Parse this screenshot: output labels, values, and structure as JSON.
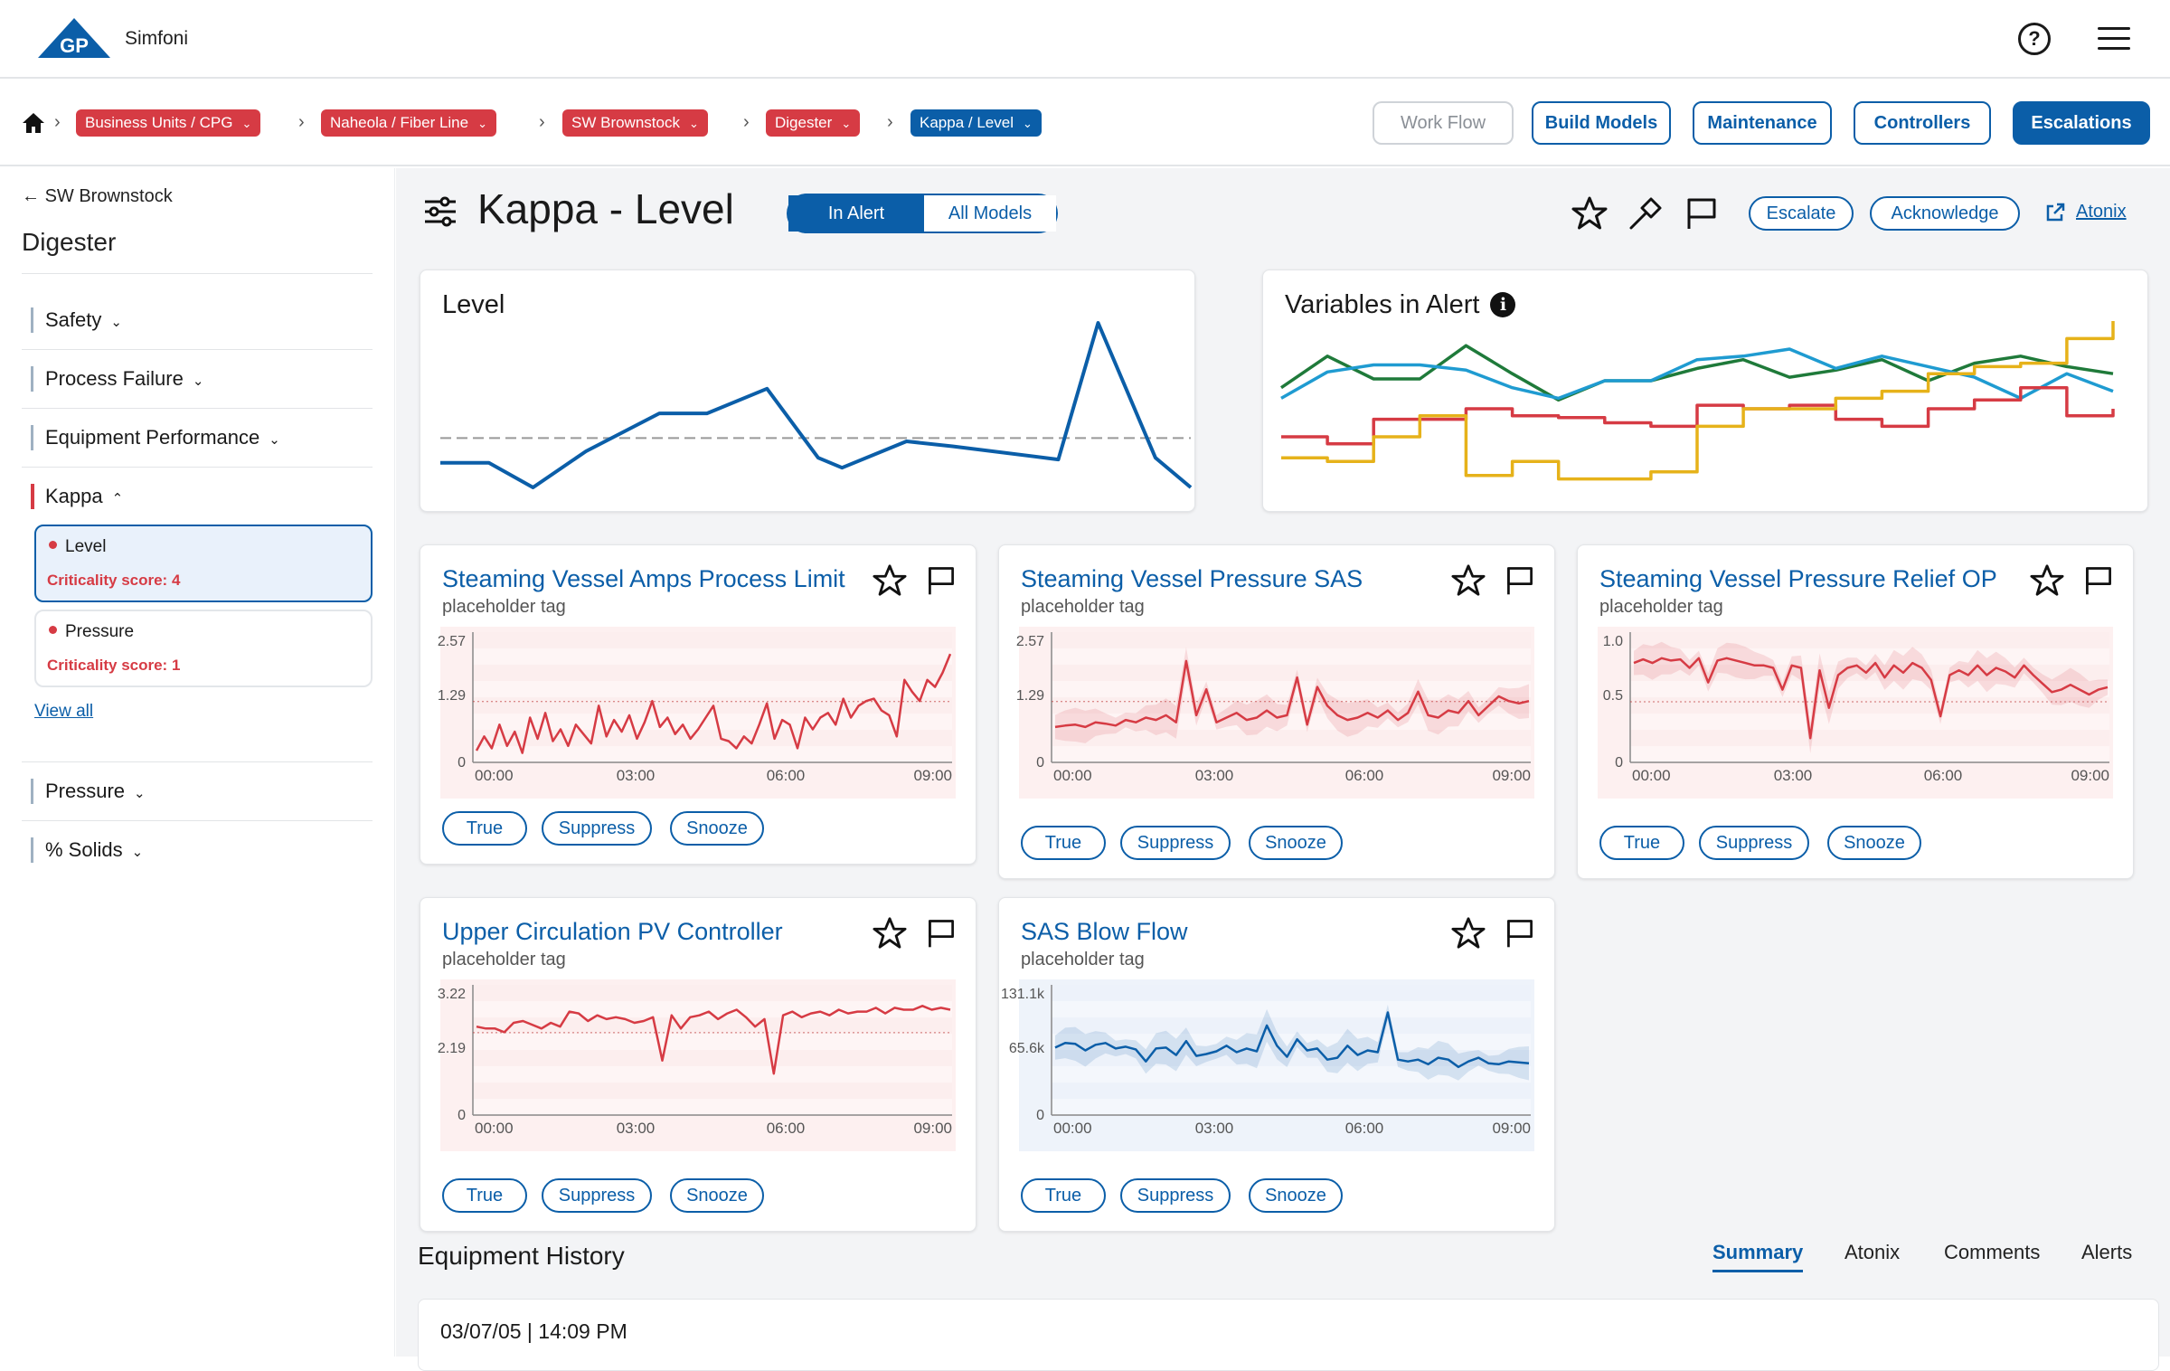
{
  "app": {
    "logo_text": "GP",
    "name": "Simfoni"
  },
  "breadcrumb": [
    {
      "label": "Business Units / CPG"
    },
    {
      "label": "Naheola / Fiber Line"
    },
    {
      "label": "SW Brownstock"
    },
    {
      "label": "Digester"
    },
    {
      "label": "Kappa / Level"
    }
  ],
  "nav": {
    "work_flow": "Work Flow",
    "build_models": "Build Models",
    "maintenance": "Maintenance",
    "controllers": "Controllers",
    "escalations": "Escalations"
  },
  "sidebar": {
    "back_label": "SW Brownstock",
    "title": "Digester",
    "categories": [
      {
        "label": "Safety"
      },
      {
        "label": "Process Failure"
      },
      {
        "label": "Equipment Performance"
      },
      {
        "label": "Kappa"
      },
      {
        "label": "Pressure"
      },
      {
        "label": "% Solids"
      }
    ],
    "models": [
      {
        "name": "Level",
        "score": "Criticality score: 4"
      },
      {
        "name": "Pressure",
        "score": "Criticality score: 1"
      }
    ],
    "view_all": "View all"
  },
  "header": {
    "title": "Kappa - Level",
    "toggle_on": "In Alert",
    "toggle_off": "All Models",
    "escalate": "Escalate",
    "acknowledge": "Acknowledge",
    "atonix_link": "Atonix"
  },
  "overview": {
    "level_title": "Level",
    "variables_title": "Variables in Alert",
    "info_glyph": "i"
  },
  "colors": {
    "accent": "#0b5ea8",
    "alert_red": "#d63b44",
    "green": "#1f7a3a",
    "cyan": "#1f9bd1",
    "gold": "#e6b21a",
    "red": "#d63b44"
  },
  "chart_data": [
    {
      "type": "line",
      "title": "Level",
      "x": [
        0,
        1,
        2,
        3,
        4,
        5,
        6,
        7,
        8,
        9,
        10,
        11,
        12,
        13,
        14
      ],
      "series": [
        {
          "values": [
            0.15,
            0.15,
            0.0,
            0.22,
            0.45,
            0.45,
            0.6,
            0.18,
            0.12,
            0.28,
            0.25,
            0.17,
            1.0,
            0.18,
            0.0
          ]
        }
      ],
      "threshold": 0.3,
      "ylim": [
        0,
        1
      ]
    },
    {
      "type": "line",
      "title": "Variables in Alert",
      "x": [
        0,
        1,
        2,
        3,
        4,
        5,
        6,
        7,
        8,
        9,
        10,
        11,
        12,
        13,
        14,
        15,
        16,
        17,
        18
      ],
      "series": [
        {
          "values": [
            0.62,
            0.8,
            0.67,
            0.67,
            0.86,
            0.7,
            0.55,
            0.66,
            0.66,
            0.73,
            0.78,
            0.68,
            0.72,
            0.78,
            0.66,
            0.76,
            0.8,
            0.74,
            0.7
          ]
        },
        {
          "values": [
            0.56,
            0.71,
            0.75,
            0.75,
            0.72,
            0.62,
            0.56,
            0.66,
            0.66,
            0.78,
            0.8,
            0.84,
            0.73,
            0.8,
            0.74,
            0.68,
            0.56,
            0.7,
            0.6
          ]
        },
        {
          "values": [
            0.34,
            0.3,
            0.44,
            0.44,
            0.5,
            0.46,
            0.45,
            0.42,
            0.4,
            0.52,
            0.5,
            0.52,
            0.44,
            0.4,
            0.5,
            0.55,
            0.62,
            0.46,
            0.5
          ]
        },
        {
          "values": [
            0.22,
            0.2,
            0.34,
            0.46,
            0.12,
            0.2,
            0.1,
            0.1,
            0.14,
            0.4,
            0.5,
            0.5,
            0.56,
            0.6,
            0.7,
            0.74,
            0.76,
            0.9,
            1.0
          ]
        }
      ],
      "ylim": [
        0,
        1
      ]
    }
  ],
  "alert_cards": [
    {
      "title": "Steaming Vessel Amps Process Limit",
      "tag": "placeholder tag",
      "buttons": [
        "True",
        "Suppress",
        "Snooze"
      ],
      "chart": {
        "type": "line",
        "color": "#d63b44",
        "band": false,
        "y_ticks": [
          "2.57",
          "1.29",
          "0"
        ],
        "x_ticks": [
          "00:00",
          "03:00",
          "06:00",
          "09:00"
        ],
        "ylim": [
          0,
          2.57
        ],
        "ref": 1.29,
        "values": [
          0.25,
          0.55,
          0.3,
          0.8,
          0.35,
          0.65,
          0.2,
          0.95,
          0.5,
          1.05,
          0.45,
          0.7,
          0.35,
          0.8,
          0.6,
          0.4,
          1.2,
          0.55,
          0.9,
          0.65,
          1.0,
          0.5,
          0.85,
          1.3,
          0.75,
          0.95,
          0.6,
          0.8,
          0.5,
          0.7,
          0.95,
          1.2,
          0.5,
          0.45,
          0.3,
          0.55,
          0.4,
          0.8,
          1.25,
          0.5,
          0.9,
          0.8,
          0.3,
          0.95,
          0.7,
          0.95,
          1.05,
          0.8,
          1.35,
          0.95,
          1.2,
          1.3,
          1.35,
          1.1,
          1.0,
          0.55,
          1.75,
          1.5,
          1.3,
          1.75,
          1.6,
          1.9,
          2.3
        ]
      }
    },
    {
      "title": "Steaming Vessel Pressure SAS",
      "tag": "placeholder tag",
      "buttons": [
        "True",
        "Suppress",
        "Snooze"
      ],
      "chart": {
        "type": "line",
        "color": "#d63b44",
        "band": true,
        "y_ticks": [
          "2.57",
          "1.29",
          "0"
        ],
        "x_ticks": [
          "00:00",
          "03:00",
          "06:00",
          "09:00"
        ],
        "ylim": [
          0,
          2.57
        ],
        "ref": 1.29,
        "values": [
          0.75,
          0.78,
          0.8,
          0.75,
          0.85,
          0.82,
          0.78,
          0.9,
          0.85,
          0.95,
          0.9,
          1.0,
          0.85,
          2.15,
          1.0,
          1.55,
          0.85,
          0.95,
          1.05,
          0.9,
          0.95,
          1.1,
          0.95,
          1.0,
          1.8,
          0.8,
          1.6,
          1.2,
          1.0,
          0.9,
          0.95,
          1.05,
          0.95,
          1.1,
          0.9,
          1.05,
          1.5,
          1.0,
          0.95,
          1.1,
          1.05,
          1.3,
          1.0,
          1.2,
          1.4,
          1.3,
          1.25,
          1.3
        ]
      }
    },
    {
      "title": "Steaming Vessel Pressure Relief OP",
      "tag": "placeholder tag",
      "buttons": [
        "True",
        "Suppress",
        "Snooze"
      ],
      "chart": {
        "type": "line",
        "color": "#d63b44",
        "band": true,
        "y_ticks": [
          "1.0",
          "0.5",
          "0"
        ],
        "x_ticks": [
          "00:00",
          "03:00",
          "06:00",
          "09:00"
        ],
        "ylim": [
          0,
          1.0
        ],
        "ref": 0.5,
        "values": [
          0.82,
          0.85,
          0.82,
          0.86,
          0.84,
          0.85,
          0.78,
          0.86,
          0.66,
          0.84,
          0.86,
          0.84,
          0.82,
          0.8,
          0.8,
          0.78,
          0.6,
          0.8,
          0.78,
          0.2,
          0.76,
          0.45,
          0.72,
          0.78,
          0.8,
          0.74,
          0.82,
          0.7,
          0.8,
          0.74,
          0.82,
          0.78,
          0.68,
          0.38,
          0.72,
          0.76,
          0.72,
          0.8,
          0.72,
          0.78,
          0.75,
          0.7,
          0.8,
          0.72,
          0.65,
          0.58,
          0.6,
          0.64,
          0.6,
          0.56,
          0.6,
          0.62
        ]
      }
    },
    {
      "title": "Upper Circulation PV Controller",
      "tag": "placeholder tag",
      "buttons": [
        "True",
        "Suppress",
        "Snooze"
      ],
      "chart": {
        "type": "line",
        "color": "#d63b44",
        "band": false,
        "y_ticks": [
          "3.22",
          "2.19",
          "0"
        ],
        "x_ticks": [
          "00:00",
          "03:00",
          "06:00",
          "09:00"
        ],
        "ylim": [
          0,
          3.22
        ],
        "ref": 2.19,
        "values": [
          2.35,
          2.3,
          2.3,
          2.2,
          2.45,
          2.5,
          2.4,
          2.3,
          2.45,
          2.35,
          2.75,
          2.7,
          2.5,
          2.65,
          2.55,
          2.6,
          2.55,
          2.45,
          2.5,
          2.6,
          1.45,
          2.65,
          2.3,
          2.6,
          2.65,
          2.75,
          2.55,
          2.7,
          2.8,
          2.6,
          2.35,
          2.55,
          1.1,
          2.65,
          2.75,
          2.6,
          2.7,
          2.75,
          2.65,
          2.8,
          2.7,
          2.75,
          2.75,
          2.85,
          2.7,
          2.85,
          2.8,
          2.8,
          2.9,
          2.8,
          2.85,
          2.8
        ]
      }
    },
    {
      "title": "SAS Blow Flow",
      "tag": "placeholder tag",
      "buttons": [
        "True",
        "Suppress",
        "Snooze"
      ],
      "chart": {
        "type": "line",
        "color": "#0b5ea8",
        "band": true,
        "y_ticks": [
          "131.1k",
          "65.6k",
          "0"
        ],
        "x_ticks": [
          "00:00",
          "03:00",
          "06:00",
          "09:00"
        ],
        "ylim": [
          0,
          131100
        ],
        "ref": null,
        "values": [
          73000,
          78000,
          77000,
          70000,
          76000,
          78000,
          72000,
          74000,
          71000,
          58000,
          72000,
          73000,
          65000,
          80000,
          64000,
          66000,
          69000,
          75000,
          68000,
          72000,
          69000,
          97000,
          75000,
          63000,
          82000,
          70000,
          72000,
          60000,
          62000,
          75000,
          65000,
          70000,
          68000,
          111000,
          60000,
          58000,
          60000,
          55000,
          62000,
          60000,
          52000,
          58000,
          62000,
          56000,
          55000,
          58000,
          57000,
          56000
        ]
      }
    }
  ],
  "history": {
    "title": "Equipment History",
    "tabs": [
      "Summary",
      "Atonix",
      "Comments",
      "Alerts"
    ],
    "entry_date": "03/07/05 | 14:09 PM"
  }
}
